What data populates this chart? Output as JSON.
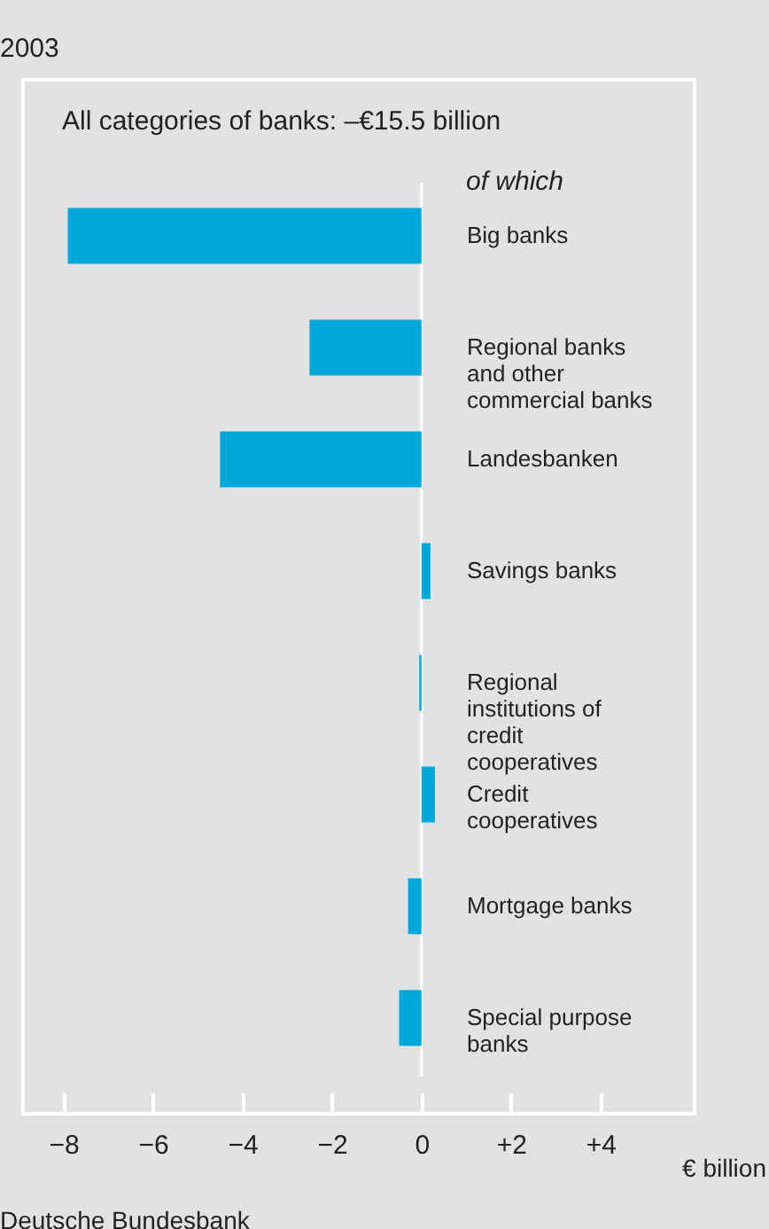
{
  "chart_data": {
    "type": "bar",
    "orientation": "horizontal",
    "title": "2003",
    "subtitle": "All categories of banks: –€15.5 billion",
    "xlabel": "€ billion",
    "annotations": [
      "of which",
      "Deutsche Bundesbank"
    ],
    "categories": [
      "Big banks",
      "Regional banks and other commercial banks",
      "Landesbanken",
      "Savings banks",
      "Regional institutions of credit cooperatives",
      "Credit cooperatives",
      "Mortgage banks",
      "Special purpose banks"
    ],
    "values": [
      -7.9,
      -2.5,
      -4.5,
      0.2,
      -0.05,
      0.3,
      -0.3,
      -0.5
    ],
    "color": "#00a9d8",
    "xlim": [
      -8.9,
      6.1
    ],
    "xticks": [
      {
        "value": -8,
        "label": "−8"
      },
      {
        "value": -6,
        "label": "−6"
      },
      {
        "value": -4,
        "label": "−4"
      },
      {
        "value": -2,
        "label": "−2"
      },
      0,
      {
        "value": 2,
        "label": "+2"
      },
      {
        "value": 4,
        "label": "+4"
      }
    ],
    "ref_lines": [
      {
        "axis": "x",
        "value": 0,
        "color": "#ffffff"
      }
    ]
  }
}
